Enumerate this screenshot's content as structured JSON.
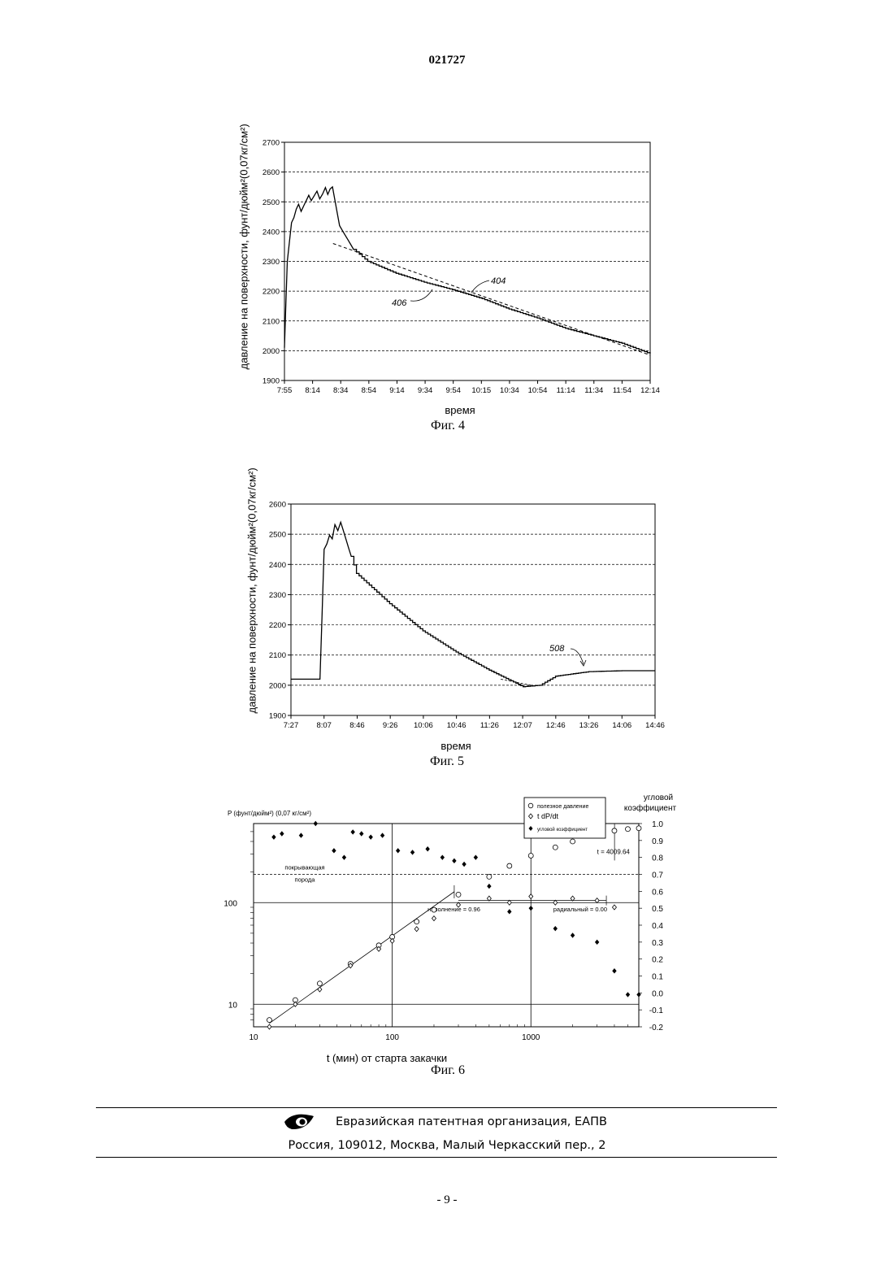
{
  "document_number": "021727",
  "page_number": "- 9 -",
  "footer": {
    "org": "Евразийская патентная организация, ЕАПВ",
    "address": "Россия, 109012, Москва, Малый Черкасский пер., 2",
    "logo_icon": "eapo-eye-logo-icon"
  },
  "fig4": {
    "caption": "Фиг. 4",
    "xlabel": "время",
    "ylabel": "давление на поверхности, фунт/дюйм²(0,07кг/см²)",
    "yticks": [
      "1900",
      "2000",
      "2100",
      "2200",
      "2300",
      "2400",
      "2500",
      "2600",
      "2700"
    ],
    "xticks": [
      "7:55",
      "8:14",
      "8:34",
      "8:54",
      "9:14",
      "9:34",
      "9:54",
      "10:15",
      "10:34",
      "10:54",
      "11:14",
      "11:34",
      "11:54",
      "12:14"
    ],
    "label_406": "406",
    "label_404": "404"
  },
  "fig5": {
    "caption": "Фиг. 5",
    "xlabel": "время",
    "ylabel": "давление на поверхности, фунт/дюйм²(0,07кг/см²)",
    "yticks": [
      "1900",
      "2000",
      "2100",
      "2200",
      "2300",
      "2400",
      "2500",
      "2600"
    ],
    "xticks": [
      "7:27",
      "8:07",
      "8:46",
      "9:26",
      "10:06",
      "10:46",
      "11:26",
      "12:07",
      "12:46",
      "13:26",
      "14:06",
      "14:46"
    ],
    "label_508": "508"
  },
  "fig6": {
    "caption": "Фиг. 6",
    "xlabel": "t (мин) от старта закачки",
    "ylabel": "P (фунт/дюйм²) (0,07 кг/см²)",
    "right_label_1": "угловой",
    "right_label_2": "коэффициент",
    "legend": [
      "полезное давление",
      "t dP/dt",
      "угловой коэффициент"
    ],
    "xticks": [
      "10",
      "100",
      "1000"
    ],
    "yticks_left": [
      "10",
      "100"
    ],
    "yticks_right": [
      "1.0",
      "0.9",
      "0.8",
      "0.7",
      "0.6",
      "0.5",
      "0.4",
      "0.3",
      "0.2",
      "0.1",
      "0.0",
      "-0.1",
      "-0.2"
    ],
    "annot_cap1": "покрывающая",
    "annot_cap2": "порода",
    "annot_fill": "наполнение = 0.96",
    "annot_radial": "радиальный = 0.00",
    "annot_t": "t = 4009.64"
  },
  "chart_data": [
    {
      "type": "line",
      "title": "Фиг. 4",
      "xlabel": "время",
      "ylabel": "давление на поверхности, фунт/дюйм²(0,07кг/см²)",
      "ylim": [
        1900,
        2700
      ],
      "grid": true,
      "series": [
        {
          "name": "406",
          "x": [
            "7:55",
            "7:57",
            "8:00",
            "8:05",
            "8:14",
            "8:24",
            "8:29",
            "8:34",
            "8:44",
            "8:54",
            "9:14",
            "9:34",
            "9:54",
            "10:15",
            "10:34",
            "10:54",
            "11:14",
            "11:34",
            "11:54",
            "12:14"
          ],
          "y": [
            2010,
            2300,
            2430,
            2480,
            2510,
            2530,
            2550,
            2420,
            2340,
            2300,
            2260,
            2230,
            2205,
            2175,
            2140,
            2110,
            2075,
            2050,
            2025,
            1990
          ]
        },
        {
          "name": "404",
          "x": [
            "8:34",
            "12:14"
          ],
          "y": [
            2360,
            1985
          ]
        }
      ]
    },
    {
      "type": "line",
      "title": "Фиг. 5",
      "xlabel": "время",
      "ylabel": "давление на поверхности, фунт/дюйм²(0,07кг/см²)",
      "ylim": [
        1900,
        2600
      ],
      "grid": true,
      "series": [
        {
          "name": "508",
          "x": [
            "7:27",
            "8:02",
            "8:07",
            "8:20",
            "8:27",
            "8:46",
            "9:26",
            "10:06",
            "10:46",
            "11:26",
            "12:07",
            "12:27",
            "12:46",
            "13:26",
            "14:06",
            "14:46"
          ],
          "y": [
            2020,
            2020,
            2450,
            2520,
            2540,
            2370,
            2270,
            2180,
            2110,
            2050,
            1995,
            2000,
            2030,
            2045,
            2048,
            2048
          ]
        }
      ]
    },
    {
      "type": "scatter",
      "title": "Фиг. 6",
      "xlabel": "t (мин) от старта закачки",
      "ylabel": "P (фунт/дюйм²) (0,07 кг/см²)",
      "xscale": "log",
      "yscale": "log",
      "xlim": [
        10,
        6000
      ],
      "right_ylim": [
        -0.2,
        1.0
      ],
      "series": [
        {
          "name": "полезное давление",
          "x": [
            13,
            20,
            30,
            50,
            80,
            100,
            150,
            200,
            300,
            500,
            700,
            1000,
            1500,
            2000,
            3000,
            4000,
            5000,
            6000
          ],
          "y": [
            7,
            11,
            16,
            25,
            38,
            46,
            65,
            85,
            120,
            180,
            230,
            290,
            350,
            400,
            460,
            510,
            530,
            540
          ]
        },
        {
          "name": "t dP/dt",
          "x": [
            13,
            20,
            30,
            50,
            80,
            100,
            150,
            200,
            300,
            500,
            700,
            1000,
            1500,
            2000,
            3000,
            4000
          ],
          "y": [
            6,
            10,
            14,
            24,
            35,
            42,
            55,
            70,
            95,
            110,
            100,
            115,
            100,
            110,
            105,
            90
          ]
        },
        {
          "name": "угловой коэффициент",
          "x": [
            14,
            16,
            22,
            28,
            38,
            45,
            52,
            60,
            70,
            85,
            110,
            140,
            180,
            230,
            280,
            330,
            400,
            500,
            700,
            1000,
            1500,
            2000,
            3000,
            4000,
            5000,
            6000
          ],
          "y": [
            0.92,
            0.94,
            0.93,
            1.0,
            0.84,
            0.8,
            0.95,
            0.94,
            0.92,
            0.93,
            0.84,
            0.83,
            0.85,
            0.8,
            0.78,
            0.76,
            0.8,
            0.63,
            0.48,
            0.5,
            0.38,
            0.34,
            0.3,
            0.13,
            -0.01,
            -0.01
          ]
        }
      ]
    }
  ]
}
